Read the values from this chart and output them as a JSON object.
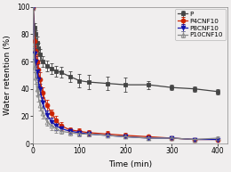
{
  "title": "",
  "xlabel": "Time (min)",
  "ylabel": "Water retention (%)",
  "xlim": [
    0,
    420
  ],
  "ylim": [
    0,
    100
  ],
  "xticks": [
    0,
    100,
    200,
    300,
    400
  ],
  "yticks": [
    0,
    20,
    40,
    60,
    80,
    100
  ],
  "series": [
    {
      "label": "P",
      "color": "#444444",
      "marker": "s",
      "markersize": 3.5,
      "markerfacecolor": "#444444",
      "markeredgecolor": "#444444",
      "linestyle": "-",
      "linewidth": 0.9,
      "x": [
        0,
        3,
        5,
        8,
        10,
        15,
        20,
        30,
        40,
        50,
        60,
        80,
        100,
        120,
        160,
        200,
        250,
        300,
        350,
        400
      ],
      "y": [
        99,
        85,
        80,
        74,
        70,
        65,
        60,
        57,
        55,
        53,
        52,
        49,
        46,
        45,
        44,
        43,
        43,
        41,
        40,
        38
      ],
      "yerr": [
        0,
        3,
        3,
        4,
        4,
        4,
        4,
        4,
        4,
        4,
        4,
        4,
        5,
        5,
        5,
        5,
        3,
        2,
        2,
        2
      ]
    },
    {
      "label": "P4CNF10",
      "color": "#cc2200",
      "marker": "o",
      "markersize": 3.5,
      "markerfacecolor": "#cc2200",
      "markeredgecolor": "#cc2200",
      "linestyle": "-",
      "linewidth": 0.9,
      "x": [
        0,
        3,
        5,
        8,
        10,
        15,
        20,
        30,
        40,
        50,
        60,
        80,
        100,
        120,
        160,
        200,
        250,
        300,
        350,
        400
      ],
      "y": [
        99,
        75,
        68,
        60,
        54,
        47,
        37,
        28,
        22,
        17,
        13,
        10,
        9,
        8,
        7,
        6,
        5,
        4,
        3,
        3
      ],
      "yerr": [
        0,
        4,
        4,
        5,
        5,
        5,
        4,
        4,
        3,
        3,
        3,
        2,
        2,
        2,
        2,
        2,
        1,
        1,
        1,
        1
      ]
    },
    {
      "label": "P8CNF10",
      "color": "#1111aa",
      "marker": "v",
      "markersize": 3.5,
      "markerfacecolor": "#1111aa",
      "markeredgecolor": "#1111aa",
      "linestyle": "-",
      "linewidth": 0.9,
      "x": [
        0,
        3,
        5,
        8,
        10,
        15,
        20,
        30,
        40,
        50,
        60,
        80,
        100,
        120,
        160,
        200,
        250,
        300,
        350,
        400
      ],
      "y": [
        99,
        66,
        60,
        53,
        47,
        40,
        30,
        21,
        16,
        13,
        11,
        9,
        8,
        7,
        6,
        5,
        4,
        4,
        3,
        3
      ],
      "yerr": [
        0,
        4,
        4,
        5,
        5,
        4,
        4,
        3,
        3,
        3,
        2,
        2,
        2,
        2,
        1,
        1,
        1,
        1,
        1,
        1
      ]
    },
    {
      "label": "P10CNF10",
      "color": "#888888",
      "marker": "^",
      "markersize": 3.5,
      "markerfacecolor": "none",
      "markeredgecolor": "#888888",
      "linestyle": "-",
      "linewidth": 0.9,
      "x": [
        0,
        3,
        5,
        8,
        10,
        15,
        20,
        30,
        40,
        50,
        60,
        80,
        100,
        120,
        160,
        200,
        250,
        300,
        350,
        400
      ],
      "y": [
        99,
        56,
        48,
        40,
        36,
        28,
        22,
        16,
        13,
        11,
        9,
        8,
        7,
        7,
        6,
        5,
        4,
        4,
        3,
        4
      ],
      "yerr": [
        0,
        4,
        4,
        5,
        5,
        4,
        4,
        3,
        3,
        3,
        2,
        2,
        2,
        2,
        1,
        1,
        1,
        1,
        1,
        1
      ]
    }
  ],
  "legend_fontsize": 5.2,
  "tick_fontsize": 5.5,
  "label_fontsize": 6.5,
  "background_color": "#f0eeee",
  "plot_bg_color": "#f0eeee"
}
